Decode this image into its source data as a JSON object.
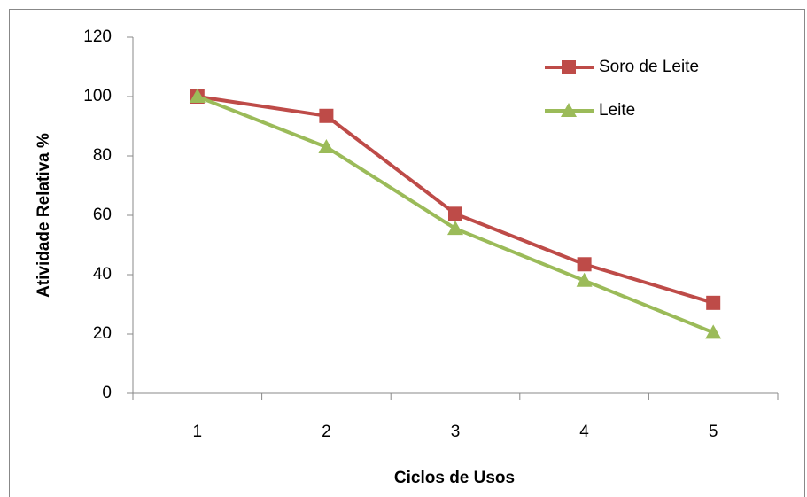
{
  "chart_data": {
    "type": "line",
    "x_label": "Ciclos de Usos",
    "y_label": "Atividade Relativa %",
    "categories": [
      "1",
      "2",
      "3",
      "4",
      "5"
    ],
    "series": [
      {
        "name": "Soro de Leite",
        "color": "#be4b48",
        "marker": "square",
        "values": [
          100,
          93.5,
          60.5,
          43.5,
          30.5
        ]
      },
      {
        "name": "Leite",
        "color": "#9bbb59",
        "marker": "triangle",
        "values": [
          100,
          83,
          55.5,
          38,
          20.5
        ]
      }
    ],
    "ylim": [
      0,
      120
    ],
    "yticks": [
      0,
      20,
      40,
      60,
      80,
      100,
      120
    ],
    "grid": false,
    "legend": "upper right"
  }
}
